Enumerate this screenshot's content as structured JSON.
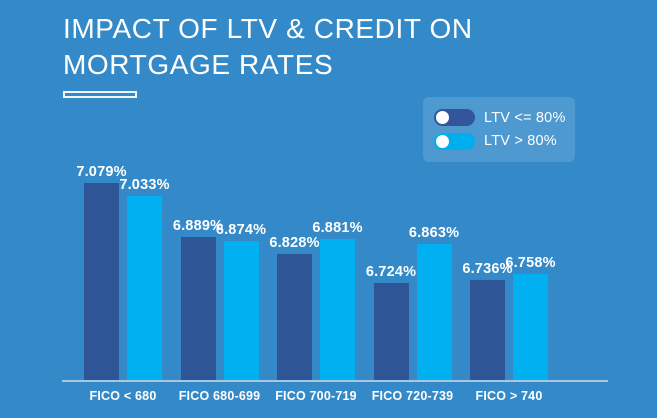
{
  "title": {
    "lines": [
      "IMPACT OF LTV & CREDIT ON",
      "MORTGAGE RATES"
    ]
  },
  "legend": {
    "items": [
      {
        "label": "LTV <= 80%",
        "color": "#32559b"
      },
      {
        "label": "LTV > 80%",
        "color": "#00aeef"
      }
    ]
  },
  "chart_data": {
    "type": "bar",
    "title": "IMPACT OF LTV & CREDIT ON MORTGAGE RATES",
    "categories": [
      "FICO < 680",
      "FICO 680-699",
      "FICO 700-719",
      "FICO 720-739",
      "FICO > 740"
    ],
    "series": [
      {
        "name": "LTV <= 80%",
        "color": "#2e5697",
        "values": [
          7.079,
          6.889,
          6.828,
          6.724,
          6.736
        ]
      },
      {
        "name": "LTV > 80%",
        "color": "#00b0f0",
        "values": [
          7.033,
          6.874,
          6.881,
          6.863,
          6.758
        ]
      }
    ],
    "value_suffix": "%",
    "value_decimals": 3,
    "xlabel": "",
    "ylabel": "",
    "ylim": [
      6.38,
      7.08
    ],
    "grid": false,
    "legend_position": "top-right"
  },
  "colors": {
    "background": "#348ac9",
    "axis_line": "#a9c6de",
    "legend_panel": "rgba(255,255,255,0.13)"
  }
}
